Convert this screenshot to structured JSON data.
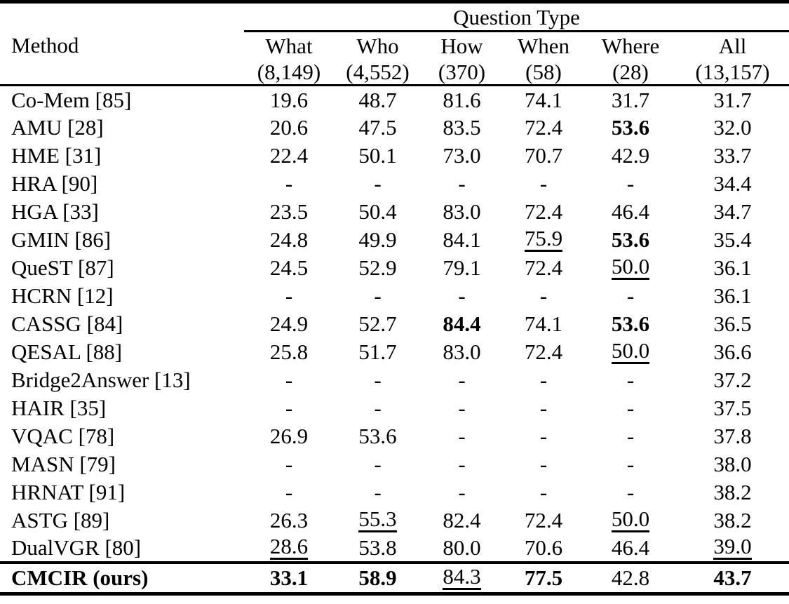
{
  "table": {
    "group_header": "Question Type",
    "method_header": "Method",
    "text_color": "#000000",
    "background_color": "#ffffff",
    "columns": [
      {
        "label": "What",
        "count": "(8,149)"
      },
      {
        "label": "Who",
        "count": "(4,552)"
      },
      {
        "label": "How",
        "count": "(370)"
      },
      {
        "label": "When",
        "count": "(58)"
      },
      {
        "label": "Where",
        "count": "(28)"
      },
      {
        "label": "All",
        "count": "(13,157)"
      }
    ],
    "rows": [
      {
        "method": "Co-Mem [85]",
        "values": [
          {
            "text": "19.6"
          },
          {
            "text": "48.7"
          },
          {
            "text": "81.6"
          },
          {
            "text": "74.1"
          },
          {
            "text": "31.7"
          },
          {
            "text": "31.7"
          }
        ]
      },
      {
        "method": "AMU [28]",
        "values": [
          {
            "text": "20.6"
          },
          {
            "text": "47.5"
          },
          {
            "text": "83.5"
          },
          {
            "text": "72.4"
          },
          {
            "text": "53.6",
            "bold": true
          },
          {
            "text": "32.0"
          }
        ]
      },
      {
        "method": "HME [31]",
        "values": [
          {
            "text": "22.4"
          },
          {
            "text": "50.1"
          },
          {
            "text": "73.0"
          },
          {
            "text": "70.7"
          },
          {
            "text": "42.9"
          },
          {
            "text": "33.7"
          }
        ]
      },
      {
        "method": "HRA [90]",
        "values": [
          {
            "text": "-"
          },
          {
            "text": "-"
          },
          {
            "text": "-"
          },
          {
            "text": "-"
          },
          {
            "text": "-"
          },
          {
            "text": "34.4"
          }
        ]
      },
      {
        "method": "HGA [33]",
        "values": [
          {
            "text": "23.5"
          },
          {
            "text": "50.4"
          },
          {
            "text": "83.0"
          },
          {
            "text": "72.4"
          },
          {
            "text": "46.4"
          },
          {
            "text": "34.7"
          }
        ]
      },
      {
        "method": "GMIN [86]",
        "values": [
          {
            "text": "24.8"
          },
          {
            "text": "49.9"
          },
          {
            "text": "84.1"
          },
          {
            "text": "75.9",
            "underline": true
          },
          {
            "text": "53.6",
            "bold": true
          },
          {
            "text": "35.4"
          }
        ]
      },
      {
        "method": "QueST [87]",
        "values": [
          {
            "text": "24.5"
          },
          {
            "text": "52.9"
          },
          {
            "text": "79.1"
          },
          {
            "text": "72.4"
          },
          {
            "text": "50.0",
            "underline": true
          },
          {
            "text": "36.1"
          }
        ]
      },
      {
        "method": "HCRN [12]",
        "values": [
          {
            "text": "-"
          },
          {
            "text": "-"
          },
          {
            "text": "-"
          },
          {
            "text": "-"
          },
          {
            "text": "-"
          },
          {
            "text": "36.1"
          }
        ]
      },
      {
        "method": "CASSG [84]",
        "values": [
          {
            "text": "24.9"
          },
          {
            "text": "52.7"
          },
          {
            "text": "84.4",
            "bold": true
          },
          {
            "text": "74.1"
          },
          {
            "text": "53.6",
            "bold": true
          },
          {
            "text": "36.5"
          }
        ]
      },
      {
        "method": "QESAL [88]",
        "values": [
          {
            "text": "25.8"
          },
          {
            "text": "51.7"
          },
          {
            "text": "83.0"
          },
          {
            "text": "72.4"
          },
          {
            "text": "50.0",
            "underline": true
          },
          {
            "text": "36.6"
          }
        ]
      },
      {
        "method": "Bridge2Answer [13]",
        "values": [
          {
            "text": "-"
          },
          {
            "text": "-"
          },
          {
            "text": "-"
          },
          {
            "text": "-"
          },
          {
            "text": "-"
          },
          {
            "text": "37.2"
          }
        ]
      },
      {
        "method": "HAIR [35]",
        "values": [
          {
            "text": "-"
          },
          {
            "text": "-"
          },
          {
            "text": "-"
          },
          {
            "text": "-"
          },
          {
            "text": "-"
          },
          {
            "text": "37.5"
          }
        ]
      },
      {
        "method": "VQAC [78]",
        "values": [
          {
            "text": "26.9"
          },
          {
            "text": "53.6"
          },
          {
            "text": "-"
          },
          {
            "text": "-"
          },
          {
            "text": "-"
          },
          {
            "text": "37.8"
          }
        ]
      },
      {
        "method": "MASN [79]",
        "values": [
          {
            "text": "-"
          },
          {
            "text": "-"
          },
          {
            "text": "-"
          },
          {
            "text": "-"
          },
          {
            "text": "-"
          },
          {
            "text": "38.0"
          }
        ]
      },
      {
        "method": "HRNAT [91]",
        "values": [
          {
            "text": "-"
          },
          {
            "text": "-"
          },
          {
            "text": "-"
          },
          {
            "text": "-"
          },
          {
            "text": "-"
          },
          {
            "text": "38.2"
          }
        ]
      },
      {
        "method": "ASTG [89]",
        "values": [
          {
            "text": "26.3"
          },
          {
            "text": "55.3",
            "underline": true
          },
          {
            "text": "82.4"
          },
          {
            "text": "72.4"
          },
          {
            "text": "50.0",
            "underline": true
          },
          {
            "text": "38.2"
          }
        ]
      },
      {
        "method": "DualVGR [80]",
        "values": [
          {
            "text": "28.6",
            "underline": true
          },
          {
            "text": "53.8"
          },
          {
            "text": "80.0"
          },
          {
            "text": "70.6"
          },
          {
            "text": "46.4"
          },
          {
            "text": "39.0",
            "underline": true
          }
        ]
      },
      {
        "method": "CMCIR (ours)",
        "emphasis": true,
        "values": [
          {
            "text": "33.1",
            "bold": true
          },
          {
            "text": "58.9",
            "bold": true
          },
          {
            "text": "84.3",
            "underline": true
          },
          {
            "text": "77.5",
            "bold": true
          },
          {
            "text": "42.8"
          },
          {
            "text": "43.7",
            "bold": true
          }
        ]
      }
    ]
  }
}
